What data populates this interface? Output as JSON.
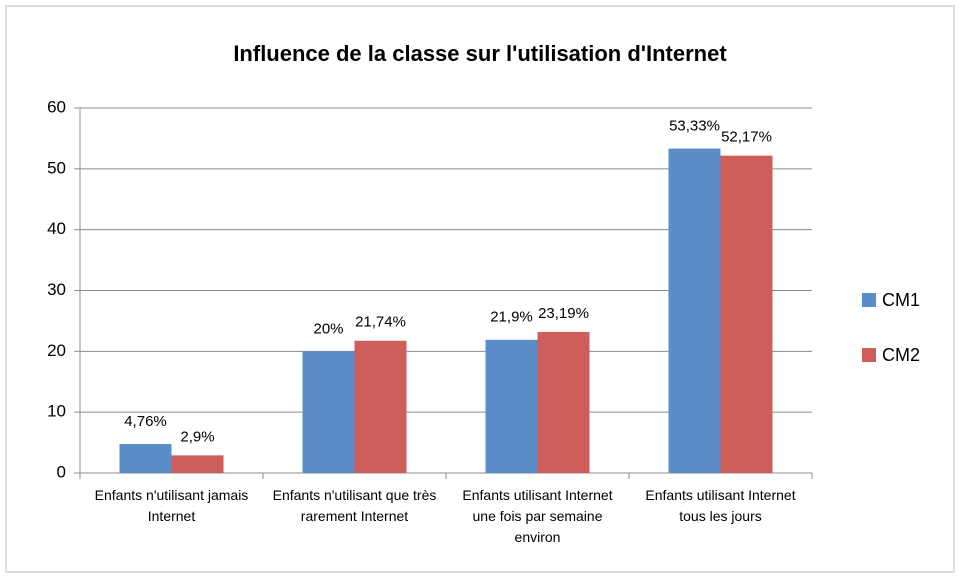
{
  "chart_data": {
    "type": "bar",
    "title": "Influence de la classe sur l'utilisation d'Internet",
    "categories": [
      "Enfants n'utilisant jamais Internet",
      "Enfants n'utilisant que très rarement Internet",
      "Enfants utilisant Internet une fois par semaine environ",
      "Enfants utilisant Internet tous les jours"
    ],
    "series": [
      {
        "name": "CM1",
        "color": "#5b8ec9",
        "values": [
          4.76,
          20,
          21.9,
          53.33
        ],
        "value_labels": [
          "4,76%",
          "20%",
          "21,9%",
          "53,33%"
        ]
      },
      {
        "name": "CM2",
        "color": "#cd5e5a",
        "values": [
          2.9,
          21.74,
          23.19,
          52.17
        ],
        "value_labels": [
          "2,9%",
          "21,74%",
          "23,19%",
          "52,17%"
        ]
      }
    ],
    "ylim": [
      0,
      60
    ],
    "yticks": [
      0,
      10,
      20,
      30,
      40,
      50,
      60
    ],
    "grid": true,
    "legend": "right"
  }
}
